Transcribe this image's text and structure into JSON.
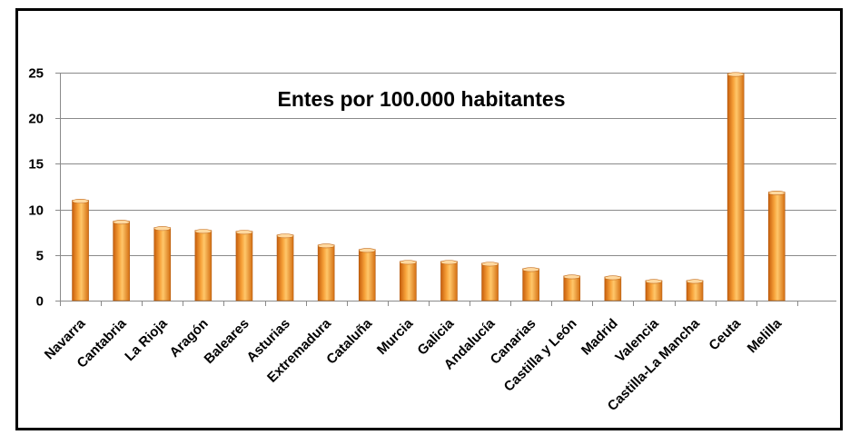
{
  "chart_data": {
    "type": "bar",
    "title": "Entes por 100.000 habitantes",
    "xlabel": "",
    "ylabel": "",
    "ylim": [
      0,
      25
    ],
    "yticks": [
      0,
      5,
      10,
      15,
      20,
      25
    ],
    "grid": true,
    "bar_color": "#f39a2e",
    "categories": [
      "Navarra",
      "Cantabria",
      "La Rioja",
      "Aragón",
      "Baleares",
      "Asturias",
      "Extremadura",
      "Cataluña",
      "Murcia",
      "Galicia",
      "Andalucía",
      "Canarias",
      "Castilla y León",
      "Madrid",
      "Valencia",
      "Castilla-La Mancha",
      "Ceuta",
      "Melilla"
    ],
    "values": [
      11.0,
      8.7,
      8.0,
      7.7,
      7.6,
      7.2,
      6.1,
      5.6,
      4.3,
      4.3,
      4.1,
      3.5,
      2.7,
      2.6,
      2.2,
      2.2,
      24.9,
      11.9
    ]
  }
}
